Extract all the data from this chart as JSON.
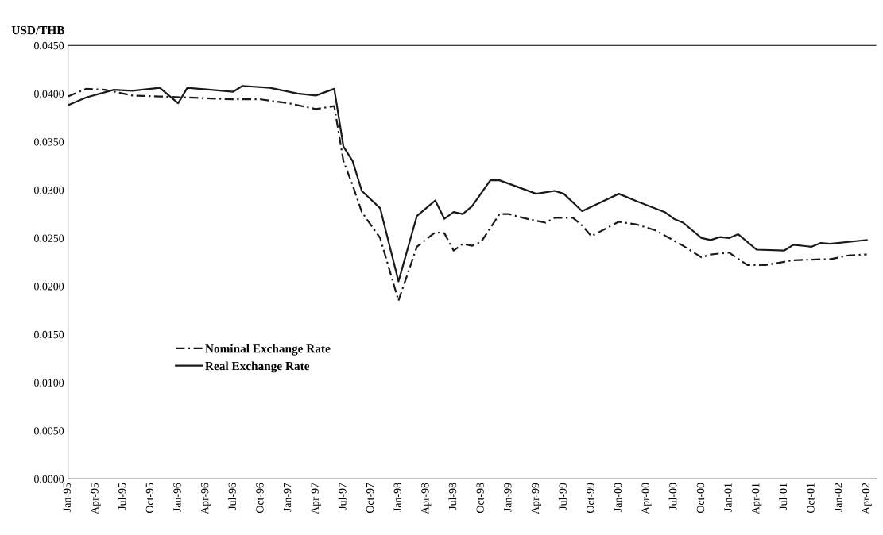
{
  "chart_data": {
    "type": "line",
    "ylabel": "USD/THB",
    "xlim": [
      "1995-01",
      "2002-05"
    ],
    "xticks": [
      {
        "value": "1995-01",
        "label": "Jan-95"
      },
      {
        "value": "1995-04",
        "label": "Apr-95"
      },
      {
        "value": "1995-07",
        "label": "Jul-95"
      },
      {
        "value": "1995-10",
        "label": "Oct-95"
      },
      {
        "value": "1996-01",
        "label": "Jan-96"
      },
      {
        "value": "1996-04",
        "label": "Apr-96"
      },
      {
        "value": "1996-07",
        "label": "Jul-96"
      },
      {
        "value": "1996-10",
        "label": "Oct-96"
      },
      {
        "value": "1997-01",
        "label": "Jan-97"
      },
      {
        "value": "1997-04",
        "label": "Apr-97"
      },
      {
        "value": "1997-07",
        "label": "Jul-97"
      },
      {
        "value": "1997-10",
        "label": "Oct-97"
      },
      {
        "value": "1998-01",
        "label": "Jan-98"
      },
      {
        "value": "1998-04",
        "label": "Apr-98"
      },
      {
        "value": "1998-07",
        "label": "Jul-98"
      },
      {
        "value": "1998-10",
        "label": "Oct-98"
      },
      {
        "value": "1999-01",
        "label": "Jan-99"
      },
      {
        "value": "1999-04",
        "label": "Apr-99"
      },
      {
        "value": "1999-07",
        "label": "Jul-99"
      },
      {
        "value": "1999-10",
        "label": "Oct-99"
      },
      {
        "value": "2000-01",
        "label": "Jan-00"
      },
      {
        "value": "2000-04",
        "label": "Apr-00"
      },
      {
        "value": "2000-07",
        "label": "Jul-00"
      },
      {
        "value": "2000-10",
        "label": "Oct-00"
      },
      {
        "value": "2001-01",
        "label": "Jan-01"
      },
      {
        "value": "2001-04",
        "label": "Apr-01"
      },
      {
        "value": "2001-07",
        "label": "Jul-01"
      },
      {
        "value": "2001-10",
        "label": "Oct-01"
      },
      {
        "value": "2002-01",
        "label": "Jan-02"
      },
      {
        "value": "2002-04",
        "label": "Apr-02"
      }
    ],
    "ylim": [
      0,
      0.045
    ],
    "yticks": [
      {
        "value": 0,
        "label": "0.0000"
      },
      {
        "value": 0.005,
        "label": "0.0050"
      },
      {
        "value": 0.01,
        "label": "0.0100"
      },
      {
        "value": 0.015,
        "label": "0.0150"
      },
      {
        "value": 0.02,
        "label": "0.0200"
      },
      {
        "value": 0.025,
        "label": "0.0250"
      },
      {
        "value": 0.03,
        "label": "0.0300"
      },
      {
        "value": 0.035,
        "label": "0.0350"
      },
      {
        "value": 0.04,
        "label": "0.0400"
      },
      {
        "value": 0.045,
        "label": "0.0450"
      }
    ],
    "grid": false,
    "legend": "left",
    "series": [
      {
        "name": "Nominal Exchange Rate",
        "color": "#1a1a1a",
        "line_style": "dashed",
        "x": [
          "1995-01",
          "1995-03",
          "1995-05",
          "1995-08",
          "1995-11",
          "1996-02",
          "1996-07",
          "1996-10",
          "1997-01",
          "1997-04",
          "1997-06",
          "1997-07",
          "1997-08",
          "1997-09",
          "1997-11",
          "1998-01",
          "1998-03",
          "1998-05",
          "1998-06",
          "1998-07",
          "1998-08",
          "1998-09",
          "1998-10",
          "1998-12",
          "1999-01",
          "1999-03",
          "1999-05",
          "1999-06",
          "1999-08",
          "1999-09",
          "1999-10",
          "2000-01",
          "2000-03",
          "2000-05",
          "2000-08",
          "2000-10",
          "2000-11",
          "2001-01",
          "2001-03",
          "2001-05",
          "2001-08",
          "2001-11",
          "2001-12",
          "2002-02",
          "2002-04"
        ],
        "values": [
          0.0397,
          0.0405,
          0.0404,
          0.0398,
          0.0397,
          0.0396,
          0.0394,
          0.0394,
          0.039,
          0.0384,
          0.0387,
          0.033,
          0.0305,
          0.0277,
          0.025,
          0.0185,
          0.0241,
          0.0256,
          0.0255,
          0.0237,
          0.0244,
          0.0242,
          0.0246,
          0.0275,
          0.0275,
          0.027,
          0.0266,
          0.0271,
          0.0271,
          0.0263,
          0.0252,
          0.0267,
          0.0264,
          0.0258,
          0.0242,
          0.023,
          0.0233,
          0.0235,
          0.0222,
          0.0222,
          0.0227,
          0.0228,
          0.0228,
          0.0232,
          0.0233
        ]
      },
      {
        "name": "Real Exchange Rate",
        "color": "#1a1a1a",
        "line_style": "solid",
        "x": [
          "1995-01",
          "1995-03",
          "1995-06",
          "1995-08",
          "1995-11",
          "1996-01",
          "1996-02",
          "1996-07",
          "1996-08",
          "1996-11",
          "1997-02",
          "1997-04",
          "1997-06",
          "1997-07",
          "1997-08",
          "1997-09",
          "1997-11",
          "1998-01",
          "1998-03",
          "1998-05",
          "1998-06",
          "1998-07",
          "1998-08",
          "1998-09",
          "1998-11",
          "1998-12",
          "1999-04",
          "1999-06",
          "1999-07",
          "1999-09",
          "2000-01",
          "2000-03",
          "2000-06",
          "2000-07",
          "2000-08",
          "2000-10",
          "2000-11",
          "2000-12",
          "2001-01",
          "2001-02",
          "2001-04",
          "2001-07",
          "2001-08",
          "2001-10",
          "2001-11",
          "2001-12",
          "2002-04"
        ],
        "values": [
          0.0388,
          0.0396,
          0.0404,
          0.0403,
          0.0406,
          0.039,
          0.0406,
          0.0402,
          0.0408,
          0.0406,
          0.04,
          0.0398,
          0.0405,
          0.0345,
          0.033,
          0.0299,
          0.0281,
          0.0205,
          0.0273,
          0.0289,
          0.027,
          0.0277,
          0.0275,
          0.0283,
          0.031,
          0.031,
          0.0296,
          0.0299,
          0.0296,
          0.0278,
          0.0296,
          0.0288,
          0.0277,
          0.027,
          0.0266,
          0.025,
          0.0248,
          0.0251,
          0.025,
          0.0254,
          0.0238,
          0.0237,
          0.0243,
          0.0241,
          0.0245,
          0.0244,
          0.0248
        ]
      }
    ]
  }
}
